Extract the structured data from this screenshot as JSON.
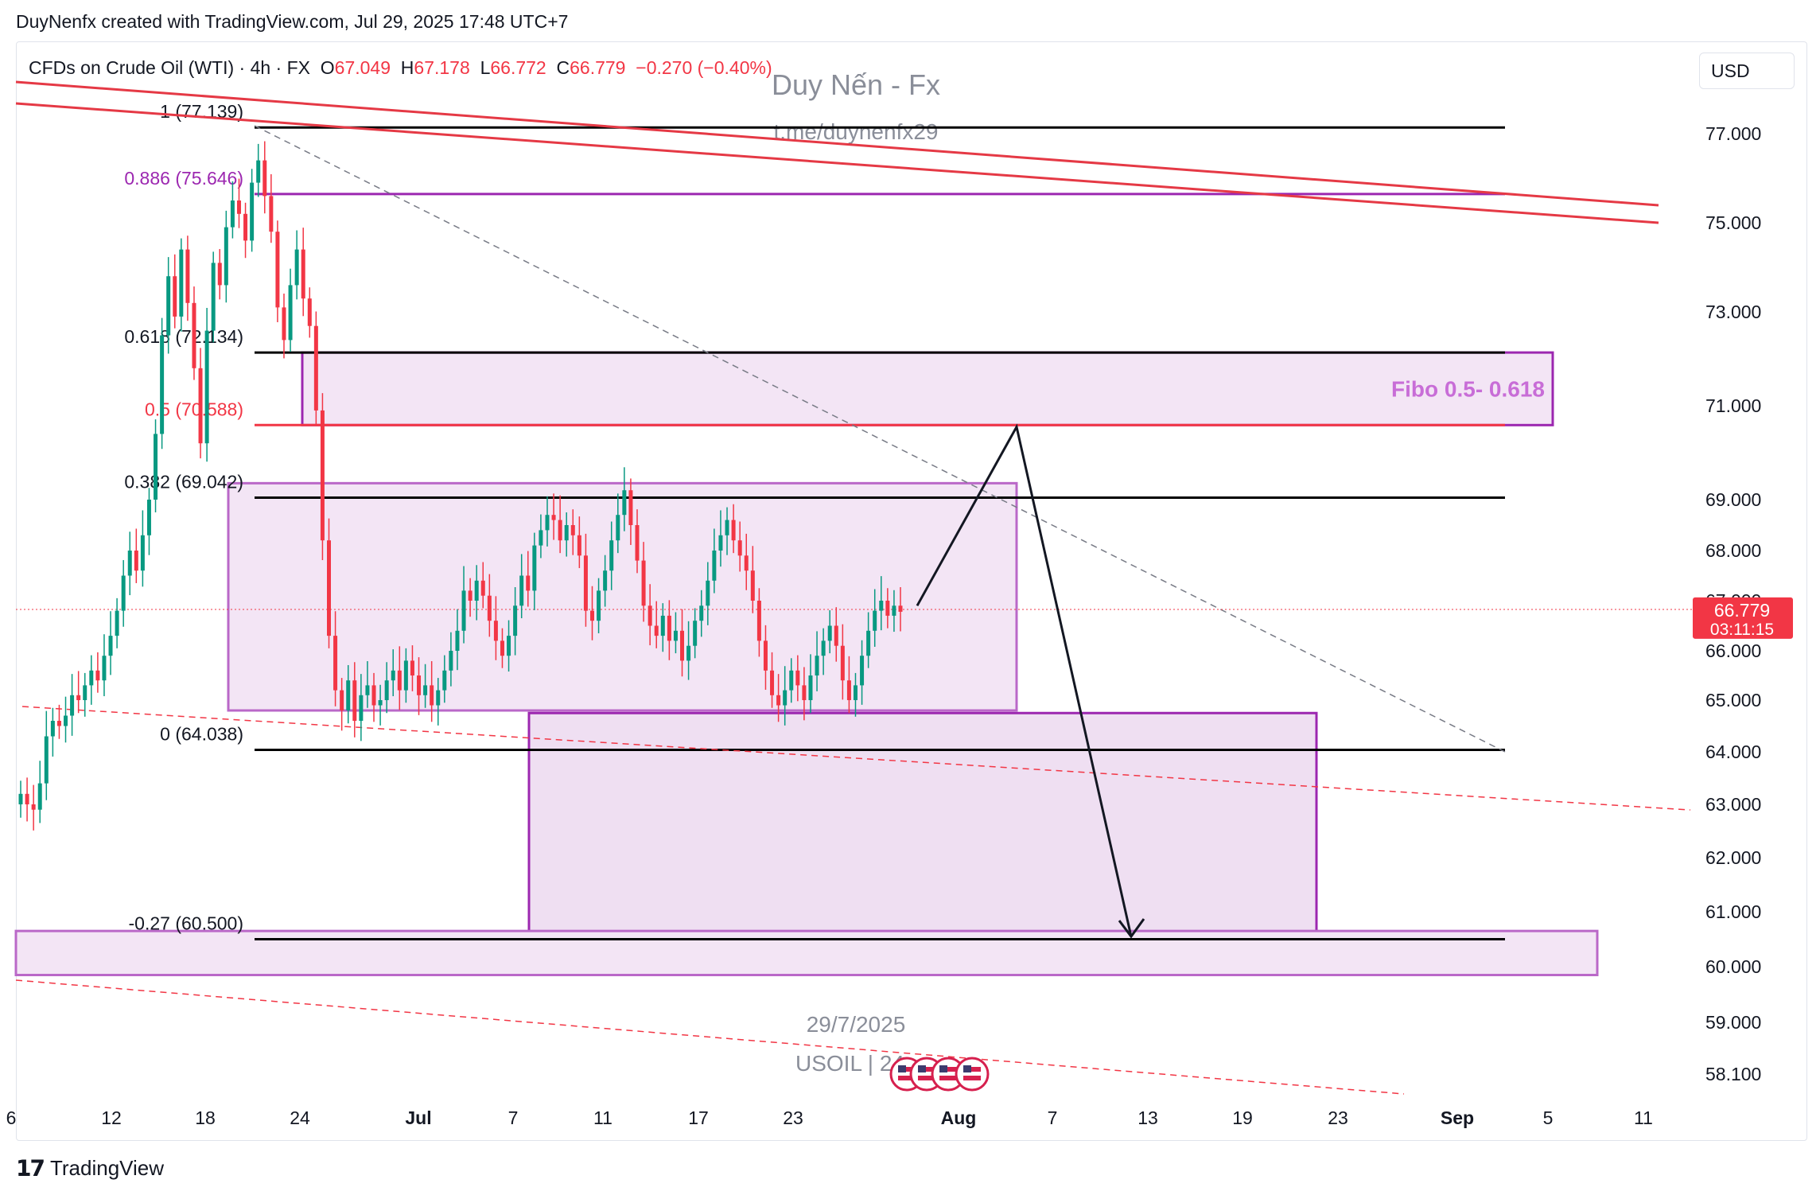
{
  "header": {
    "credit": "DuyNenfx created with TradingView.com, Jul 29, 2025 17:48 UTC+7"
  },
  "legend": {
    "symbol": "CFDs on Crude Oil (WTI) · 4h · FX",
    "open_label": "O",
    "open": "67.049",
    "high_label": "H",
    "high": "67.178",
    "low_label": "L",
    "low": "66.772",
    "close_label": "C",
    "close": "66.779",
    "change": "−0.270 (−0.40%)"
  },
  "currency_button": "USD",
  "watermark": {
    "title": "Duy Nến - Fx",
    "link": "t.me/duynenfx29",
    "date": "29/7/2025",
    "ticker": "USOIL | 24..."
  },
  "price_badge": {
    "price": "66.779",
    "countdown": "03:11:15"
  },
  "footer": {
    "brand": "TradingView"
  },
  "colors": {
    "down": "#f23645",
    "up": "#089981",
    "purple": "#9c27b0",
    "zone_fill": "#f3e5f5",
    "trend_red": "#e53945"
  },
  "chart_data": {
    "type": "candlestick",
    "symbol": "USOIL",
    "timeframe": "4h",
    "y_ticks": [
      "77.000",
      "75.000",
      "73.000",
      "71.000",
      "69.000",
      "68.000",
      "67.000",
      "66.000",
      "65.000",
      "64.000",
      "63.000",
      "62.000",
      "61.000",
      "60.000",
      "59.000",
      "58.100"
    ],
    "x_ticks": [
      "6",
      "12",
      "18",
      "24",
      "Jul",
      "7",
      "11",
      "17",
      "23",
      "Aug",
      "7",
      "13",
      "19",
      "23",
      "Sep",
      "5",
      "11"
    ],
    "fib_levels": [
      {
        "label": "1 (77.139)",
        "value": 77.139
      },
      {
        "label": "0.886 (75.646)",
        "value": 75.646
      },
      {
        "label": "0.618 (72.134)",
        "value": 72.134
      },
      {
        "label": "0.5 (70.588)",
        "value": 70.588
      },
      {
        "label": "0.382 (69.042)",
        "value": 69.042
      },
      {
        "label": "0 (64.038)",
        "value": 64.038
      },
      {
        "label": "-0.27 (60.500)",
        "value": 60.5
      }
    ],
    "zones": [
      {
        "label": "Fibo 0.5- 0.618",
        "from": 70.588,
        "to": 72.134
      },
      {
        "label": "",
        "from": 64.8,
        "to": 69.35
      },
      {
        "label": "",
        "from": 60.45,
        "to": 64.75
      },
      {
        "label": "",
        "from": 59.85,
        "to": 60.65
      }
    ],
    "projection": {
      "path": [
        66.9,
        70.55,
        60.55
      ]
    },
    "last_price": 66.779,
    "candle_closes": [
      63.2,
      63.0,
      62.9,
      63.4,
      64.3,
      64.6,
      64.5,
      64.7,
      65.1,
      65.0,
      65.3,
      65.6,
      65.4,
      65.9,
      66.3,
      66.8,
      67.5,
      68.0,
      67.6,
      68.3,
      69.0,
      70.4,
      72.5,
      73.8,
      72.9,
      74.4,
      73.2,
      71.8,
      70.2,
      72.6,
      74.1,
      73.6,
      74.9,
      75.5,
      75.2,
      74.6,
      75.9,
      76.4,
      75.6,
      74.8,
      73.1,
      72.4,
      73.6,
      74.4,
      73.3,
      72.7,
      70.9,
      68.2,
      66.3,
      65.2,
      64.8,
      65.4,
      64.6,
      65.1,
      65.3,
      64.9,
      65.0,
      65.4,
      65.6,
      65.2,
      65.8,
      65.5,
      65.1,
      65.3,
      64.9,
      65.2,
      65.6,
      66.0,
      66.4,
      67.2,
      67.0,
      67.4,
      67.1,
      66.6,
      66.2,
      65.9,
      66.3,
      66.9,
      67.5,
      67.2,
      68.1,
      68.4,
      68.7,
      68.6,
      68.2,
      68.5,
      68.3,
      67.9,
      66.8,
      66.6,
      67.2,
      67.6,
      68.2,
      68.7,
      69.2,
      68.5,
      67.8,
      66.9,
      66.5,
      66.3,
      66.7,
      66.2,
      66.4,
      65.8,
      66.1,
      66.6,
      66.9,
      67.4,
      68.0,
      68.3,
      68.6,
      68.2,
      67.9,
      67.6,
      67.0,
      66.2,
      65.6,
      65.1,
      64.9,
      65.2,
      65.6,
      65.3,
      65.0,
      65.5,
      65.9,
      66.2,
      66.5,
      66.1,
      65.4,
      65.0,
      65.3,
      65.9,
      66.4,
      66.8,
      67.0,
      66.7,
      66.9,
      66.779
    ]
  }
}
